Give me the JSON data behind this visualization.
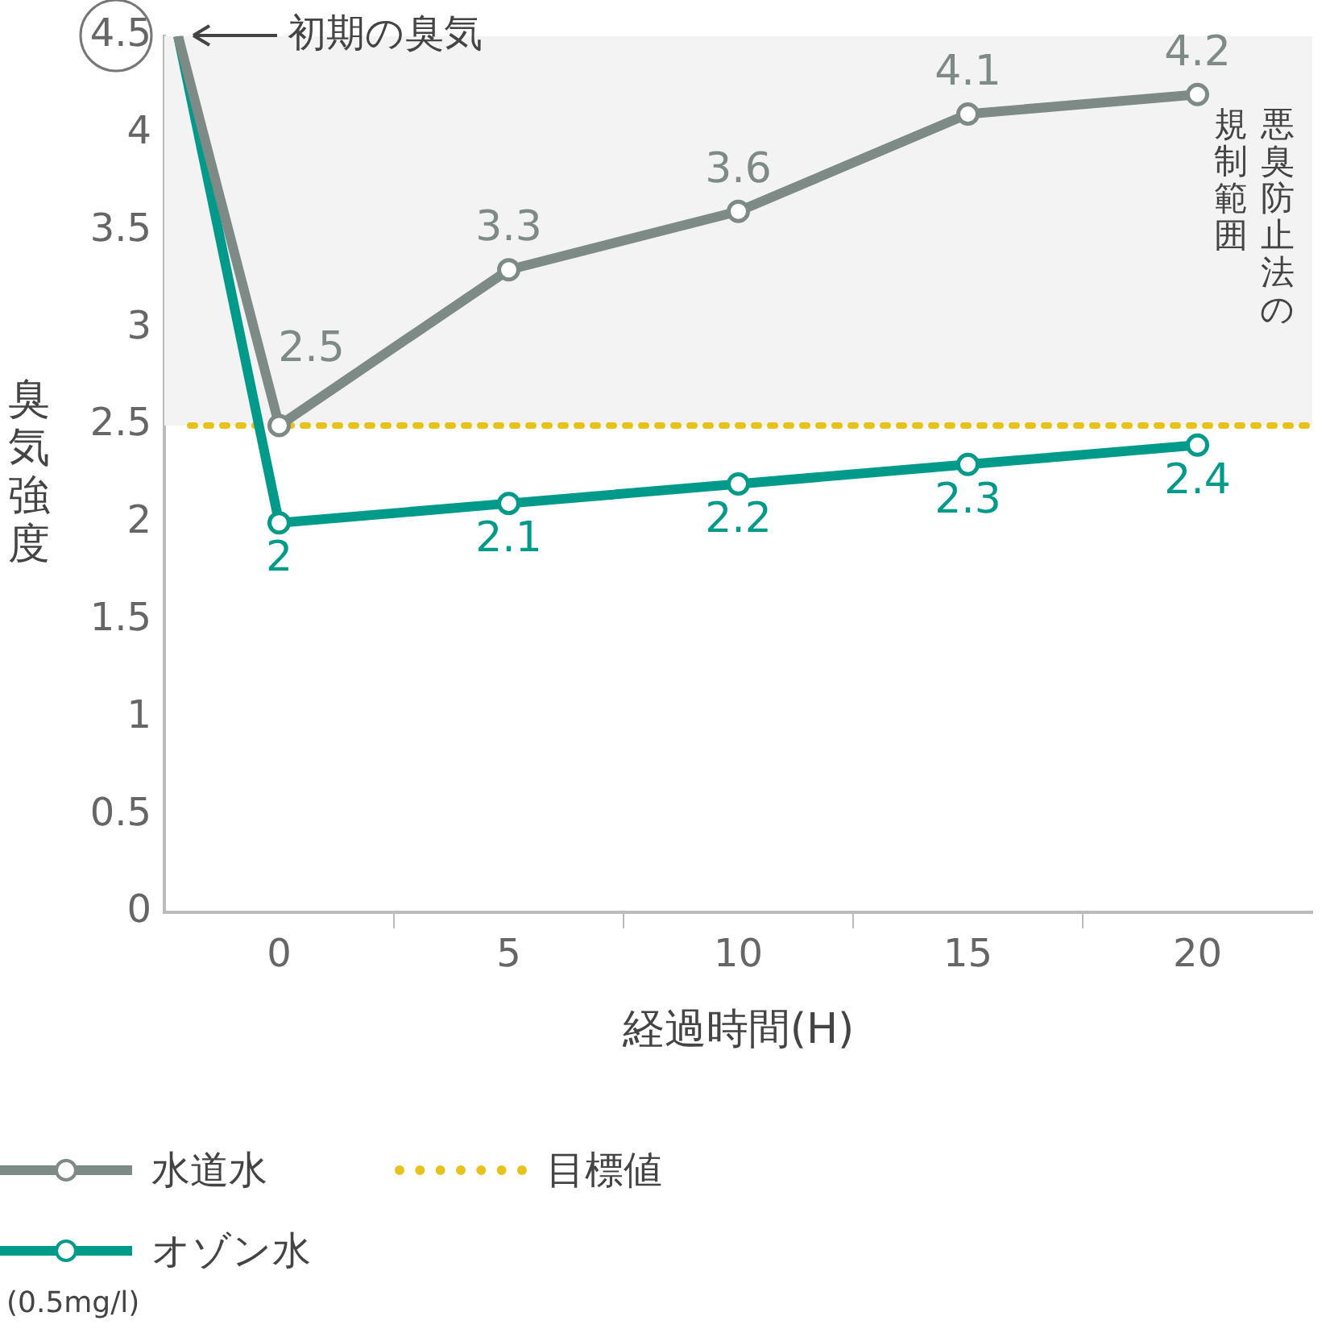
{
  "chart_data": {
    "type": "line",
    "xlabel": "経過時間(H)",
    "ylabel": "臭気強度",
    "x": [
      -2.2,
      0,
      5,
      10,
      15,
      20
    ],
    "series": [
      {
        "name": "水道水",
        "color": "#7d8a86",
        "values": [
          4.5,
          2.5,
          3.3,
          3.6,
          4.1,
          4.2
        ],
        "value_labels": [
          null,
          "2.5",
          "3.3",
          "3.6",
          "4.1",
          "4.2"
        ]
      },
      {
        "name": "オゾン水",
        "color": "#009a8a",
        "values": [
          4.5,
          2,
          2.1,
          2.2,
          2.3,
          2.4
        ],
        "value_labels": [
          null,
          "2",
          "2.1",
          "2.2",
          "2.3",
          "2.4"
        ]
      }
    ],
    "xlim": [
      -2.5,
      22.5
    ],
    "xticks": [
      0,
      {
        "value": 2.5,
        "label": null
      },
      5,
      {
        "value": 7.5,
        "label": null
      },
      10,
      {
        "value": 12.5,
        "label": null
      },
      15,
      {
        "value": 17.5,
        "label": null
      },
      20
    ],
    "ylim": [
      0,
      4.5
    ],
    "yticks": [
      0,
      0.5,
      1,
      1.5,
      2,
      2.5,
      3,
      3.5,
      4,
      4.5
    ],
    "ref_lines": [
      {
        "axis": "y",
        "value": 2.5,
        "label": "目標値",
        "color": "#e8c21c",
        "line_style": "dotted"
      }
    ],
    "bands": [
      {
        "axis": "y",
        "from": 2.5,
        "to": 4.5,
        "label": "悪臭防止法の規制範囲",
        "color": "#f3f3f3"
      }
    ],
    "annotations": [
      {
        "text": "初期の臭気",
        "x": -2.2,
        "y": 4.5
      },
      "(0.5mg/l)"
    ],
    "marker": "circle",
    "line_style": "solid",
    "grid": false,
    "legend": "bottom"
  }
}
